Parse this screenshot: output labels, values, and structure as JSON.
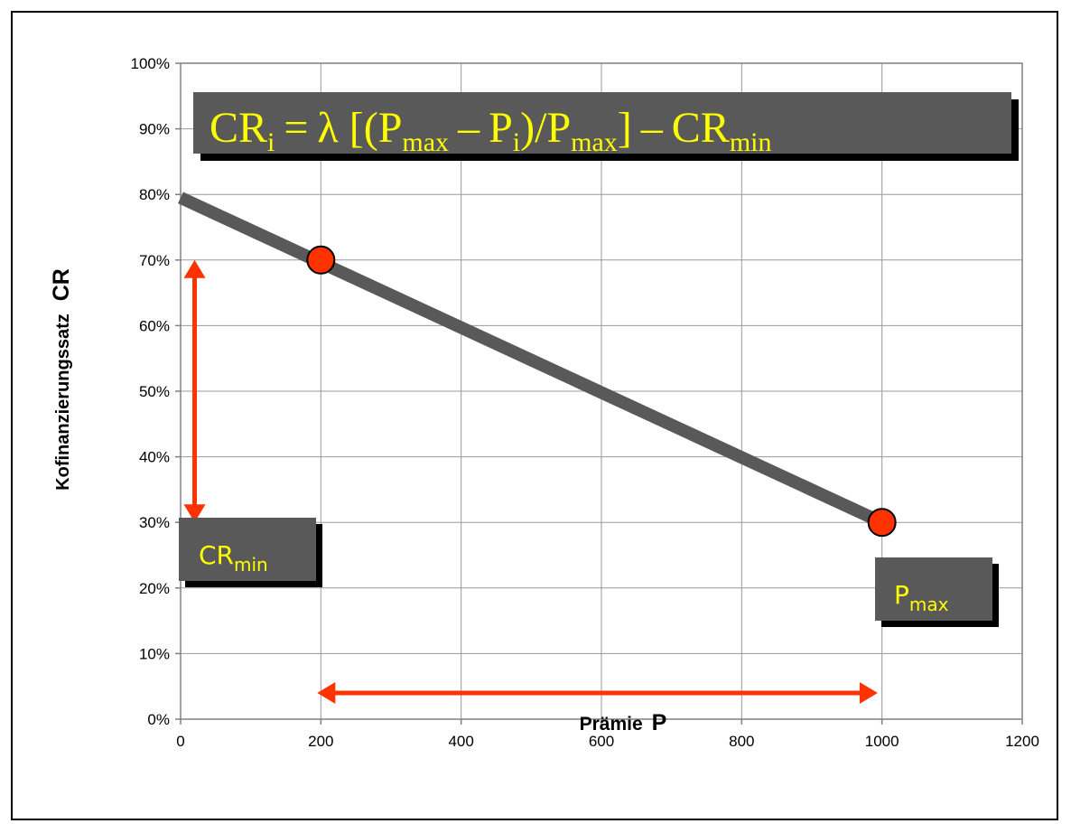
{
  "chart_data": {
    "type": "line",
    "xlabel": "Prämie",
    "xlabel_symbol": "P",
    "ylabel": "Kofinanzierungssatz",
    "ylabel_symbol": "CR",
    "xlim": [
      0,
      1200
    ],
    "ylim": [
      0,
      1
    ],
    "x_ticks": [
      0,
      200,
      400,
      600,
      800,
      1000,
      1200
    ],
    "x_tick_labels": [
      "0",
      "200",
      "400",
      "600",
      "800",
      "1000",
      "1200"
    ],
    "y_ticks": [
      0,
      0.1,
      0.2,
      0.3,
      0.4,
      0.5,
      0.6,
      0.7,
      0.8,
      0.9,
      1.0
    ],
    "y_tick_labels": [
      "0%",
      "10%",
      "20%",
      "30%",
      "40%",
      "50%",
      "60%",
      "70%",
      "80%",
      "90%",
      "100%"
    ],
    "grid": true,
    "series": [
      {
        "x": [
          0,
          1000
        ],
        "y": [
          0.795,
          0.3
        ],
        "color": "#595959"
      }
    ],
    "points": [
      {
        "x": 200,
        "y": 0.7,
        "color": "#ff3300"
      },
      {
        "x": 1000,
        "y": 0.3,
        "color": "#ff3300"
      }
    ],
    "annotations": {
      "formula": {
        "cr": "CR",
        "i1": "i",
        "eq": "=",
        "lambda": "λ",
        "open": "[(",
        "p1": "P",
        "max1": "max",
        "minus1": "–",
        "p2": "P",
        "i2": "i",
        "slash": ")/",
        "p3": "P",
        "max2": "max",
        "close": "]",
        "minus2": "–",
        "cr2": "CR",
        "min": "min"
      },
      "crmin_label": {
        "main": "CR",
        "sub": "min"
      },
      "pmax_label": {
        "main": "P",
        "sub": "max"
      },
      "v_arrow": {
        "x": 20,
        "y_from": 0.3,
        "y_to": 0.7,
        "color": "#ff3300"
      },
      "h_arrow": {
        "y": 0.04,
        "x_from": 200,
        "x_to": 990,
        "color": "#ff3300"
      }
    },
    "colors": {
      "label_box_fill": "#595959",
      "label_text": "#ffff00"
    }
  }
}
